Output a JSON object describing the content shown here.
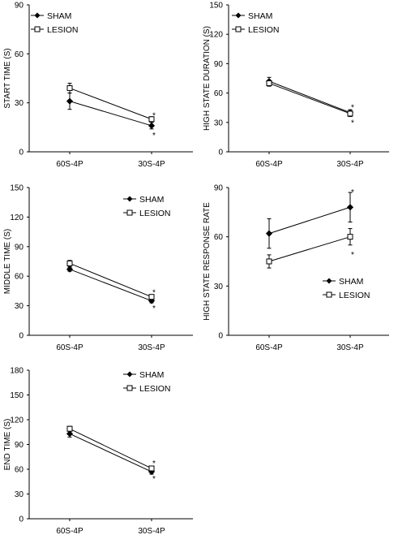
{
  "chart_data": [
    {
      "type": "line",
      "title": "",
      "xlabel": "",
      "ylabel": "START TIME (S)",
      "categories": [
        "60S-4P",
        "30S-4P"
      ],
      "ylim": [
        0,
        90
      ],
      "yticks": [
        0,
        30,
        60,
        90
      ],
      "legend_position": "top-left",
      "series": [
        {
          "name": "SHAM",
          "marker": "filled-diamond",
          "values": [
            31,
            16
          ],
          "errors": [
            5,
            2
          ]
        },
        {
          "name": "LESION",
          "marker": "open-square",
          "values": [
            39,
            20
          ],
          "errors": [
            3,
            1.5
          ]
        }
      ],
      "annotations": [
        {
          "text": "*",
          "category": "30S-4P",
          "y": 23
        },
        {
          "text": "*",
          "category": "30S-4P",
          "y": 11
        }
      ]
    },
    {
      "type": "line",
      "title": "",
      "xlabel": "",
      "ylabel": "HIGH STATE DURATION (S)",
      "categories": [
        "60S-4P",
        "30S-4P"
      ],
      "ylim": [
        0,
        150
      ],
      "yticks": [
        0,
        30,
        60,
        90,
        120,
        150
      ],
      "legend_position": "top-left",
      "series": [
        {
          "name": "SHAM",
          "marker": "filled-diamond",
          "values": [
            72,
            40
          ],
          "errors": [
            4,
            3
          ]
        },
        {
          "name": "LESION",
          "marker": "open-square",
          "values": [
            70,
            39
          ],
          "errors": [
            3,
            3
          ]
        }
      ],
      "annotations": [
        {
          "text": "*",
          "category": "30S-4P",
          "y": 47
        },
        {
          "text": "*",
          "category": "30S-4P",
          "y": 31
        }
      ]
    },
    {
      "type": "line",
      "title": "",
      "xlabel": "",
      "ylabel": "MIDDLE TIME (S)",
      "categories": [
        "60S-4P",
        "30S-4P"
      ],
      "ylim": [
        0,
        150
      ],
      "yticks": [
        0,
        30,
        60,
        90,
        120,
        150
      ],
      "legend_position": "top-right",
      "series": [
        {
          "name": "SHAM",
          "marker": "filled-diamond",
          "values": [
            67,
            35
          ],
          "errors": [
            2,
            2
          ]
        },
        {
          "name": "LESION",
          "marker": "open-square",
          "values": [
            73,
            39
          ],
          "errors": [
            3,
            2
          ]
        }
      ],
      "annotations": [
        {
          "text": "*",
          "category": "30S-4P",
          "y": 45
        },
        {
          "text": "*",
          "category": "30S-4P",
          "y": 29
        }
      ]
    },
    {
      "type": "line",
      "title": "",
      "xlabel": "",
      "ylabel": "HIGH STATE RESPONSE RATE",
      "categories": [
        "60S-4P",
        "30S-4P"
      ],
      "ylim": [
        0,
        90
      ],
      "yticks": [
        0,
        30,
        60,
        90
      ],
      "legend_position": "bottom-right",
      "series": [
        {
          "name": "SHAM",
          "marker": "filled-diamond",
          "values": [
            62,
            78
          ],
          "errors": [
            9,
            9
          ]
        },
        {
          "name": "LESION",
          "marker": "open-square",
          "values": [
            45,
            60
          ],
          "errors": [
            4,
            5
          ]
        }
      ],
      "annotations": [
        {
          "text": "*",
          "category": "30S-4P",
          "y": 88
        },
        {
          "text": "*",
          "category": "30S-4P",
          "y": 50
        }
      ]
    },
    {
      "type": "line",
      "title": "",
      "xlabel": "",
      "ylabel": "END TIME (S)",
      "categories": [
        "60S-4P",
        "30S-4P"
      ],
      "ylim": [
        0,
        180
      ],
      "yticks": [
        0,
        30,
        60,
        90,
        120,
        150,
        180
      ],
      "legend_position": "top-right",
      "series": [
        {
          "name": "SHAM",
          "marker": "filled-diamond",
          "values": [
            103,
            57
          ],
          "errors": [
            4,
            3
          ]
        },
        {
          "name": "LESION",
          "marker": "open-square",
          "values": [
            109,
            61
          ],
          "errors": [
            3,
            2
          ]
        }
      ],
      "annotations": [
        {
          "text": "*",
          "category": "30S-4P",
          "y": 69
        },
        {
          "text": "*",
          "category": "30S-4P",
          "y": 50
        }
      ]
    }
  ]
}
